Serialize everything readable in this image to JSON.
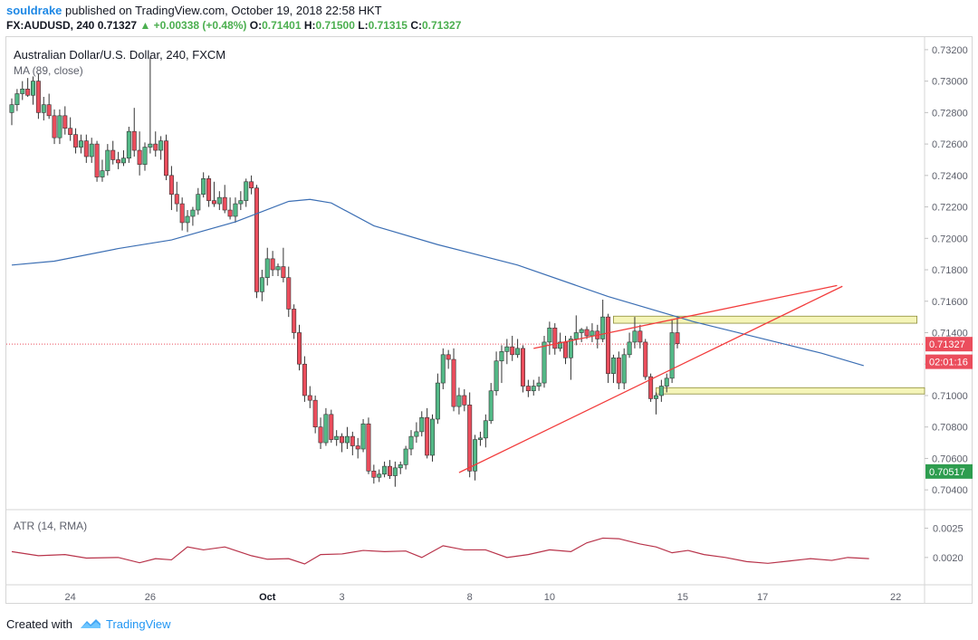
{
  "header": {
    "author": "souldrake",
    "published_text": "published on TradingView.com, October 19, 2018 22:58 HKT",
    "symbol": "FX:AUDUSD, 240",
    "last": "0.71327",
    "change": "+0.00338 (+0.48%)",
    "open_label": "O:",
    "open": "0.71401",
    "high_label": "H:",
    "high": "0.71500",
    "low_label": "L:",
    "low": "0.71315",
    "close_label": "C:",
    "close": "0.71327"
  },
  "legend": {
    "title": "Australian Dollar/U.S. Dollar, 240, FXCM",
    "ma": "MA (89, close)",
    "atr": "ATR (14, RMA)"
  },
  "footer": {
    "created_with": "Created with",
    "brand": "TradingView"
  },
  "colors": {
    "up": "#53b987",
    "down": "#eb4d5c",
    "ma": "#3c6fb4",
    "atr": "#b8334a",
    "trend": "#f23b3b",
    "zone": "#f5f5b8",
    "blue": "#2196f3"
  },
  "chart_data": {
    "type": "candlestick",
    "price_axis": {
      "ticks": [
        "0.73200",
        "0.73000",
        "0.72800",
        "0.72600",
        "0.72400",
        "0.72200",
        "0.72000",
        "0.71800",
        "0.71600",
        "0.71400",
        "0.71200",
        "0.71000",
        "0.70800",
        "0.70600",
        "0.70400"
      ],
      "range": [
        0.7028,
        0.7328
      ]
    },
    "date_axis": {
      "ticks": [
        {
          "label": "24",
          "i": 11
        },
        {
          "label": "26",
          "i": 26
        },
        {
          "label": "Oct",
          "i": 48
        },
        {
          "label": "3",
          "i": 62
        },
        {
          "label": "8",
          "i": 86
        },
        {
          "label": "10",
          "i": 101
        },
        {
          "label": "15",
          "i": 126
        },
        {
          "label": "17",
          "i": 141
        },
        {
          "label": "22",
          "i": 166
        }
      ]
    },
    "price_tags": [
      {
        "label": "0.71327",
        "value": 0.71327,
        "type": "last"
      },
      {
        "label": "02:01:16",
        "value": 0.71215,
        "type": "countdown"
      },
      {
        "label": "0.70517",
        "value": 0.70517,
        "type": "ma"
      }
    ],
    "atr_axis": {
      "ticks": [
        "0.0025",
        "0.0020"
      ],
      "range": [
        0.00155,
        0.0028
      ]
    },
    "candles": [
      [
        0.728,
        0.7289,
        0.7272,
        0.7285
      ],
      [
        0.7285,
        0.7295,
        0.7281,
        0.7292
      ],
      [
        0.7292,
        0.73,
        0.7288,
        0.7295
      ],
      [
        0.7295,
        0.7302,
        0.729,
        0.7291
      ],
      [
        0.7291,
        0.7303,
        0.7285,
        0.73
      ],
      [
        0.73,
        0.7305,
        0.7276,
        0.728
      ],
      [
        0.728,
        0.729,
        0.7275,
        0.7285
      ],
      [
        0.7285,
        0.7292,
        0.7276,
        0.7278
      ],
      [
        0.7278,
        0.7282,
        0.726,
        0.7264
      ],
      [
        0.7264,
        0.7282,
        0.726,
        0.7278
      ],
      [
        0.7278,
        0.7284,
        0.7266,
        0.727
      ],
      [
        0.727,
        0.7277,
        0.7262,
        0.7266
      ],
      [
        0.7266,
        0.727,
        0.7254,
        0.7258
      ],
      [
        0.7258,
        0.7266,
        0.7254,
        0.7262
      ],
      [
        0.7262,
        0.7266,
        0.7248,
        0.7252
      ],
      [
        0.7252,
        0.7264,
        0.7248,
        0.726
      ],
      [
        0.726,
        0.7262,
        0.7236,
        0.7239
      ],
      [
        0.7239,
        0.725,
        0.7236,
        0.7243
      ],
      [
        0.7243,
        0.726,
        0.724,
        0.7256
      ],
      [
        0.7256,
        0.7262,
        0.7247,
        0.725
      ],
      [
        0.725,
        0.7255,
        0.7244,
        0.7248
      ],
      [
        0.7248,
        0.7256,
        0.7246,
        0.7251
      ],
      [
        0.7251,
        0.7271,
        0.7248,
        0.7268
      ],
      [
        0.7268,
        0.7283,
        0.7252,
        0.7256
      ],
      [
        0.7256,
        0.7268,
        0.724,
        0.7247
      ],
      [
        0.7247,
        0.7261,
        0.7243,
        0.7258
      ],
      [
        0.7258,
        0.7315,
        0.7254,
        0.726
      ],
      [
        0.726,
        0.7268,
        0.7252,
        0.7256
      ],
      [
        0.7256,
        0.7265,
        0.725,
        0.7262
      ],
      [
        0.7262,
        0.7266,
        0.7237,
        0.724
      ],
      [
        0.724,
        0.7246,
        0.7218,
        0.7228
      ],
      [
        0.7228,
        0.7236,
        0.7217,
        0.7222
      ],
      [
        0.7222,
        0.7226,
        0.7205,
        0.721
      ],
      [
        0.721,
        0.7218,
        0.7204,
        0.7214
      ],
      [
        0.7214,
        0.722,
        0.7208,
        0.7218
      ],
      [
        0.7218,
        0.7232,
        0.7215,
        0.7228
      ],
      [
        0.7228,
        0.7242,
        0.7226,
        0.7238
      ],
      [
        0.7238,
        0.724,
        0.722,
        0.7224
      ],
      [
        0.7224,
        0.7236,
        0.722,
        0.7222
      ],
      [
        0.7222,
        0.723,
        0.7218,
        0.7226
      ],
      [
        0.7226,
        0.7234,
        0.7216,
        0.7218
      ],
      [
        0.7218,
        0.7226,
        0.7212,
        0.7214
      ],
      [
        0.7214,
        0.7226,
        0.721,
        0.7222
      ],
      [
        0.7222,
        0.723,
        0.7218,
        0.7224
      ],
      [
        0.7224,
        0.7238,
        0.722,
        0.7236
      ],
      [
        0.7236,
        0.724,
        0.7228,
        0.7232
      ],
      [
        0.7232,
        0.7234,
        0.7162,
        0.7166
      ],
      [
        0.7166,
        0.718,
        0.716,
        0.7175
      ],
      [
        0.7175,
        0.7194,
        0.717,
        0.7187
      ],
      [
        0.7187,
        0.7192,
        0.7176,
        0.718
      ],
      [
        0.718,
        0.7184,
        0.7176,
        0.7182
      ],
      [
        0.7182,
        0.7194,
        0.7172,
        0.7175
      ],
      [
        0.7175,
        0.7182,
        0.715,
        0.7155
      ],
      [
        0.7155,
        0.7158,
        0.7136,
        0.714
      ],
      [
        0.714,
        0.7145,
        0.7116,
        0.712
      ],
      [
        0.712,
        0.7125,
        0.7096,
        0.71
      ],
      [
        0.71,
        0.7106,
        0.7092,
        0.7097
      ],
      [
        0.7097,
        0.71,
        0.7076,
        0.708
      ],
      [
        0.708,
        0.7086,
        0.7066,
        0.707
      ],
      [
        0.707,
        0.7092,
        0.7068,
        0.7088
      ],
      [
        0.7088,
        0.7091,
        0.707,
        0.7072
      ],
      [
        0.7072,
        0.7078,
        0.7068,
        0.7074
      ],
      [
        0.7074,
        0.7076,
        0.7064,
        0.707
      ],
      [
        0.707,
        0.708,
        0.7066,
        0.7074
      ],
      [
        0.7074,
        0.7077,
        0.7062,
        0.7068
      ],
      [
        0.7068,
        0.7073,
        0.706,
        0.7066
      ],
      [
        0.7066,
        0.7085,
        0.7064,
        0.7082
      ],
      [
        0.7082,
        0.7086,
        0.705,
        0.7052
      ],
      [
        0.7052,
        0.7056,
        0.7044,
        0.7048
      ],
      [
        0.7048,
        0.7053,
        0.7045,
        0.705
      ],
      [
        0.705,
        0.7058,
        0.7048,
        0.7055
      ],
      [
        0.7055,
        0.7059,
        0.7047,
        0.7049
      ],
      [
        0.7049,
        0.7058,
        0.7042,
        0.7054
      ],
      [
        0.7054,
        0.7058,
        0.705,
        0.7056
      ],
      [
        0.7056,
        0.7068,
        0.7053,
        0.7066
      ],
      [
        0.7066,
        0.7078,
        0.7062,
        0.7074
      ],
      [
        0.7074,
        0.7083,
        0.707,
        0.7077
      ],
      [
        0.7077,
        0.709,
        0.7074,
        0.7086
      ],
      [
        0.7086,
        0.7092,
        0.706,
        0.7062
      ],
      [
        0.7062,
        0.7088,
        0.7058,
        0.7085
      ],
      [
        0.7085,
        0.7114,
        0.7082,
        0.7108
      ],
      [
        0.7108,
        0.713,
        0.7104,
        0.7126
      ],
      [
        0.7126,
        0.7129,
        0.7117,
        0.7123
      ],
      [
        0.7123,
        0.713,
        0.709,
        0.7093
      ],
      [
        0.7093,
        0.7105,
        0.7088,
        0.71
      ],
      [
        0.71,
        0.7104,
        0.709,
        0.7094
      ],
      [
        0.7094,
        0.7102,
        0.7048,
        0.7052
      ],
      [
        0.7052,
        0.7075,
        0.7046,
        0.7072
      ],
      [
        0.7072,
        0.7077,
        0.7068,
        0.7073
      ],
      [
        0.7073,
        0.7088,
        0.7067,
        0.7084
      ],
      [
        0.7084,
        0.7108,
        0.7082,
        0.7103
      ],
      [
        0.7103,
        0.7128,
        0.71,
        0.7122
      ],
      [
        0.7122,
        0.7132,
        0.7108,
        0.7128
      ],
      [
        0.7128,
        0.7136,
        0.712,
        0.7131
      ],
      [
        0.7131,
        0.7138,
        0.7122,
        0.7126
      ],
      [
        0.7126,
        0.7136,
        0.7124,
        0.713
      ],
      [
        0.713,
        0.7132,
        0.7102,
        0.7106
      ],
      [
        0.7106,
        0.711,
        0.7099,
        0.7103
      ],
      [
        0.7103,
        0.711,
        0.71,
        0.7106
      ],
      [
        0.7106,
        0.7112,
        0.7103,
        0.7108
      ],
      [
        0.7108,
        0.7138,
        0.7105,
        0.7134
      ],
      [
        0.7134,
        0.7147,
        0.7126,
        0.7143
      ],
      [
        0.7143,
        0.7146,
        0.7126,
        0.713
      ],
      [
        0.713,
        0.714,
        0.7128,
        0.7134
      ],
      [
        0.7134,
        0.7138,
        0.712,
        0.7124
      ],
      [
        0.7124,
        0.7138,
        0.711,
        0.7136
      ],
      [
        0.7136,
        0.7151,
        0.7132,
        0.714
      ],
      [
        0.714,
        0.7143,
        0.7134,
        0.7142
      ],
      [
        0.7142,
        0.7144,
        0.7136,
        0.7138
      ],
      [
        0.7138,
        0.7146,
        0.7134,
        0.7141
      ],
      [
        0.7141,
        0.7145,
        0.713,
        0.7136
      ],
      [
        0.7136,
        0.7161,
        0.7134,
        0.715
      ],
      [
        0.715,
        0.7152,
        0.7108,
        0.7114
      ],
      [
        0.7114,
        0.7126,
        0.7108,
        0.7124
      ],
      [
        0.7124,
        0.7128,
        0.7104,
        0.7108
      ],
      [
        0.7108,
        0.713,
        0.7104,
        0.7126
      ],
      [
        0.7126,
        0.714,
        0.7124,
        0.7134
      ],
      [
        0.7134,
        0.715,
        0.713,
        0.7141
      ],
      [
        0.7141,
        0.7145,
        0.713,
        0.7134
      ],
      [
        0.7134,
        0.7136,
        0.711,
        0.7112
      ],
      [
        0.7112,
        0.7114,
        0.7096,
        0.7098
      ],
      [
        0.7098,
        0.7102,
        0.7088,
        0.71
      ],
      [
        0.71,
        0.711,
        0.7096,
        0.7106
      ],
      [
        0.7106,
        0.7114,
        0.7102,
        0.7111
      ],
      [
        0.7111,
        0.7148,
        0.7108,
        0.714
      ],
      [
        0.714,
        0.715,
        0.713,
        0.7133
      ]
    ],
    "ma_points": [
      [
        0,
        0.7183
      ],
      [
        8,
        0.71855
      ],
      [
        20,
        0.71935
      ],
      [
        30,
        0.7199
      ],
      [
        42,
        0.72105
      ],
      [
        52,
        0.72235
      ],
      [
        56,
        0.72248
      ],
      [
        60,
        0.72225
      ],
      [
        68,
        0.7208
      ],
      [
        80,
        0.7196
      ],
      [
        95,
        0.7183
      ],
      [
        112,
        0.7163
      ],
      [
        128,
        0.7147
      ],
      [
        140,
        0.7137
      ],
      [
        152,
        0.7127
      ],
      [
        160,
        0.7119
      ]
    ],
    "atr_points": [
      [
        0,
        0.0021
      ],
      [
        5,
        0.00203
      ],
      [
        10,
        0.00205
      ],
      [
        14,
        0.00199
      ],
      [
        20,
        0.002
      ],
      [
        24,
        0.00191
      ],
      [
        27,
        0.00198
      ],
      [
        30,
        0.00196
      ],
      [
        33,
        0.00218
      ],
      [
        36,
        0.00213
      ],
      [
        40,
        0.00218
      ],
      [
        45,
        0.00203
      ],
      [
        48,
        0.00197
      ],
      [
        52,
        0.00198
      ],
      [
        55,
        0.00189
      ],
      [
        58,
        0.00205
      ],
      [
        62,
        0.00206
      ],
      [
        66,
        0.00212
      ],
      [
        70,
        0.0021
      ],
      [
        74,
        0.00211
      ],
      [
        77,
        0.002
      ],
      [
        81,
        0.0022
      ],
      [
        85,
        0.00213
      ],
      [
        89,
        0.00213
      ],
      [
        93,
        0.002
      ],
      [
        97,
        0.00205
      ],
      [
        101,
        0.00213
      ],
      [
        105,
        0.0021
      ],
      [
        108,
        0.00225
      ],
      [
        111,
        0.00233
      ],
      [
        114,
        0.00232
      ],
      [
        118,
        0.00223
      ],
      [
        121,
        0.00218
      ],
      [
        124,
        0.00208
      ],
      [
        127,
        0.00212
      ],
      [
        130,
        0.00205
      ],
      [
        134,
        0.002
      ],
      [
        138,
        0.00193
      ],
      [
        142,
        0.0019
      ],
      [
        146,
        0.00194
      ],
      [
        150,
        0.00198
      ],
      [
        154,
        0.00195
      ],
      [
        157,
        0.002
      ],
      [
        161,
        0.00198
      ]
    ],
    "annotations": {
      "resistance_zone": [
        0.71505,
        0.7146
      ],
      "support_zone": [
        0.7105,
        0.7101
      ],
      "trendlines": [
        {
          "from": [
            98,
            0.713
          ],
          "to": [
            155,
            0.717
          ]
        },
        {
          "from": [
            84,
            0.7051
          ],
          "to": [
            156,
            0.71695
          ]
        }
      ]
    }
  }
}
